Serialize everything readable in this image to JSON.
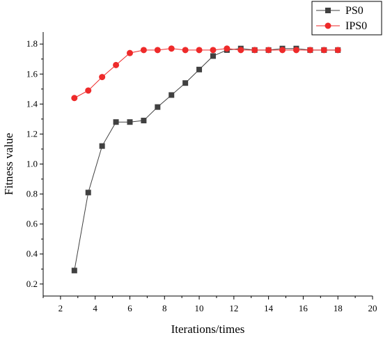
{
  "chart_data": {
    "type": "line",
    "title": "",
    "xlabel": "Iterations/times",
    "ylabel": "Fitness value",
    "xlim": [
      1,
      20
    ],
    "ylim": [
      0.12,
      1.88
    ],
    "xticks": [
      2,
      4,
      6,
      8,
      10,
      12,
      14,
      16,
      18,
      20
    ],
    "yticks": [
      0.2,
      0.4,
      0.6,
      0.8,
      1.0,
      1.2,
      1.4,
      1.6,
      1.8
    ],
    "xtick_labels": [
      "2",
      "4",
      "6",
      "8",
      "10",
      "12",
      "14",
      "16",
      "18",
      "20"
    ],
    "ytick_labels": [
      "0.2",
      "0.4",
      "0.6",
      "0.8",
      "1.0",
      "1.2",
      "1.4",
      "1.6",
      "1.8"
    ],
    "grid": false,
    "legend_position": "top-right",
    "series": [
      {
        "name": "PS0",
        "color": "#404040",
        "marker": "square",
        "x": [
          2.8,
          3.6,
          4.4,
          5.2,
          6.0,
          6.8,
          7.6,
          8.4,
          9.2,
          10.0,
          10.8,
          11.6,
          12.4,
          13.2,
          14.0,
          14.8,
          15.6,
          16.4,
          17.2,
          18.0
        ],
        "y": [
          0.29,
          0.81,
          1.12,
          1.28,
          1.28,
          1.29,
          1.38,
          1.46,
          1.54,
          1.63,
          1.72,
          1.76,
          1.77,
          1.76,
          1.76,
          1.77,
          1.77,
          1.76,
          1.76,
          1.76
        ]
      },
      {
        "name": "IPS0",
        "color": "#ee2a2a",
        "marker": "circle",
        "x": [
          2.8,
          3.6,
          4.4,
          5.2,
          6.0,
          6.8,
          7.6,
          8.4,
          9.2,
          10.0,
          10.8,
          11.6,
          12.4,
          13.2,
          14.0,
          14.8,
          15.6,
          16.4,
          17.2,
          18.0
        ],
        "y": [
          1.44,
          1.49,
          1.58,
          1.66,
          1.74,
          1.76,
          1.76,
          1.77,
          1.76,
          1.76,
          1.76,
          1.77,
          1.76,
          1.76,
          1.76,
          1.76,
          1.76,
          1.76,
          1.76,
          1.76
        ]
      }
    ]
  }
}
